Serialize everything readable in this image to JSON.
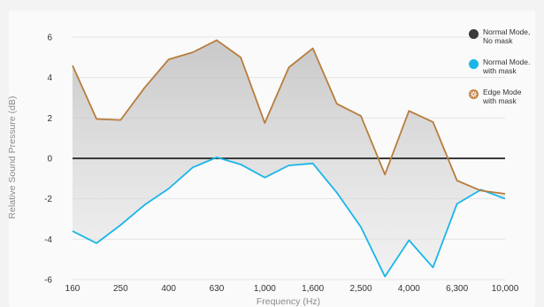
{
  "chart_data": {
    "type": "line",
    "xlabel": "Frequency (Hz)",
    "ylabel": "Relative Sound Pressure (dB)",
    "ylim": [
      -6,
      6
    ],
    "yticks": [
      6,
      4,
      2,
      0,
      -2,
      -4,
      -6
    ],
    "x_tick_labels": [
      "160",
      "250",
      "400",
      "630",
      "1,000",
      "1,600",
      "2,500",
      "4,000",
      "6,300",
      "10,000"
    ],
    "x": [
      "160",
      "200",
      "250",
      "315",
      "400",
      "500",
      "630",
      "800",
      "1,000",
      "1,250",
      "1,600",
      "2,000",
      "2,500",
      "3,150",
      "4,000",
      "5,000",
      "6,300",
      "8,000",
      "10,000"
    ],
    "series": [
      {
        "name": "Normal Mode,\nNo mask",
        "color": "#3a3a3a",
        "values": [
          0,
          0,
          0,
          0,
          0,
          0,
          0,
          0,
          0,
          0,
          0,
          0,
          0,
          0,
          0,
          0,
          0,
          0,
          0
        ]
      },
      {
        "name": "Normal Mode.\nwith mask",
        "color": "#1ab6e8",
        "values": [
          -3.6,
          -4.2,
          -3.3,
          -2.3,
          -1.5,
          -0.45,
          0.05,
          -0.3,
          -0.95,
          -0.35,
          -0.25,
          -1.7,
          -3.4,
          -5.85,
          -4.05,
          -5.4,
          -2.25,
          -1.55,
          -2.0
        ]
      },
      {
        "name": "Edge Mode\nwith mask",
        "color": "#b87d3e",
        "values": [
          4.6,
          1.95,
          1.9,
          3.5,
          4.9,
          5.25,
          5.85,
          5.0,
          1.75,
          4.5,
          5.45,
          2.7,
          2.1,
          -0.8,
          2.35,
          1.8,
          -1.1,
          -1.6,
          -1.75
        ]
      }
    ],
    "grid": "horizontal",
    "legend": "right"
  }
}
